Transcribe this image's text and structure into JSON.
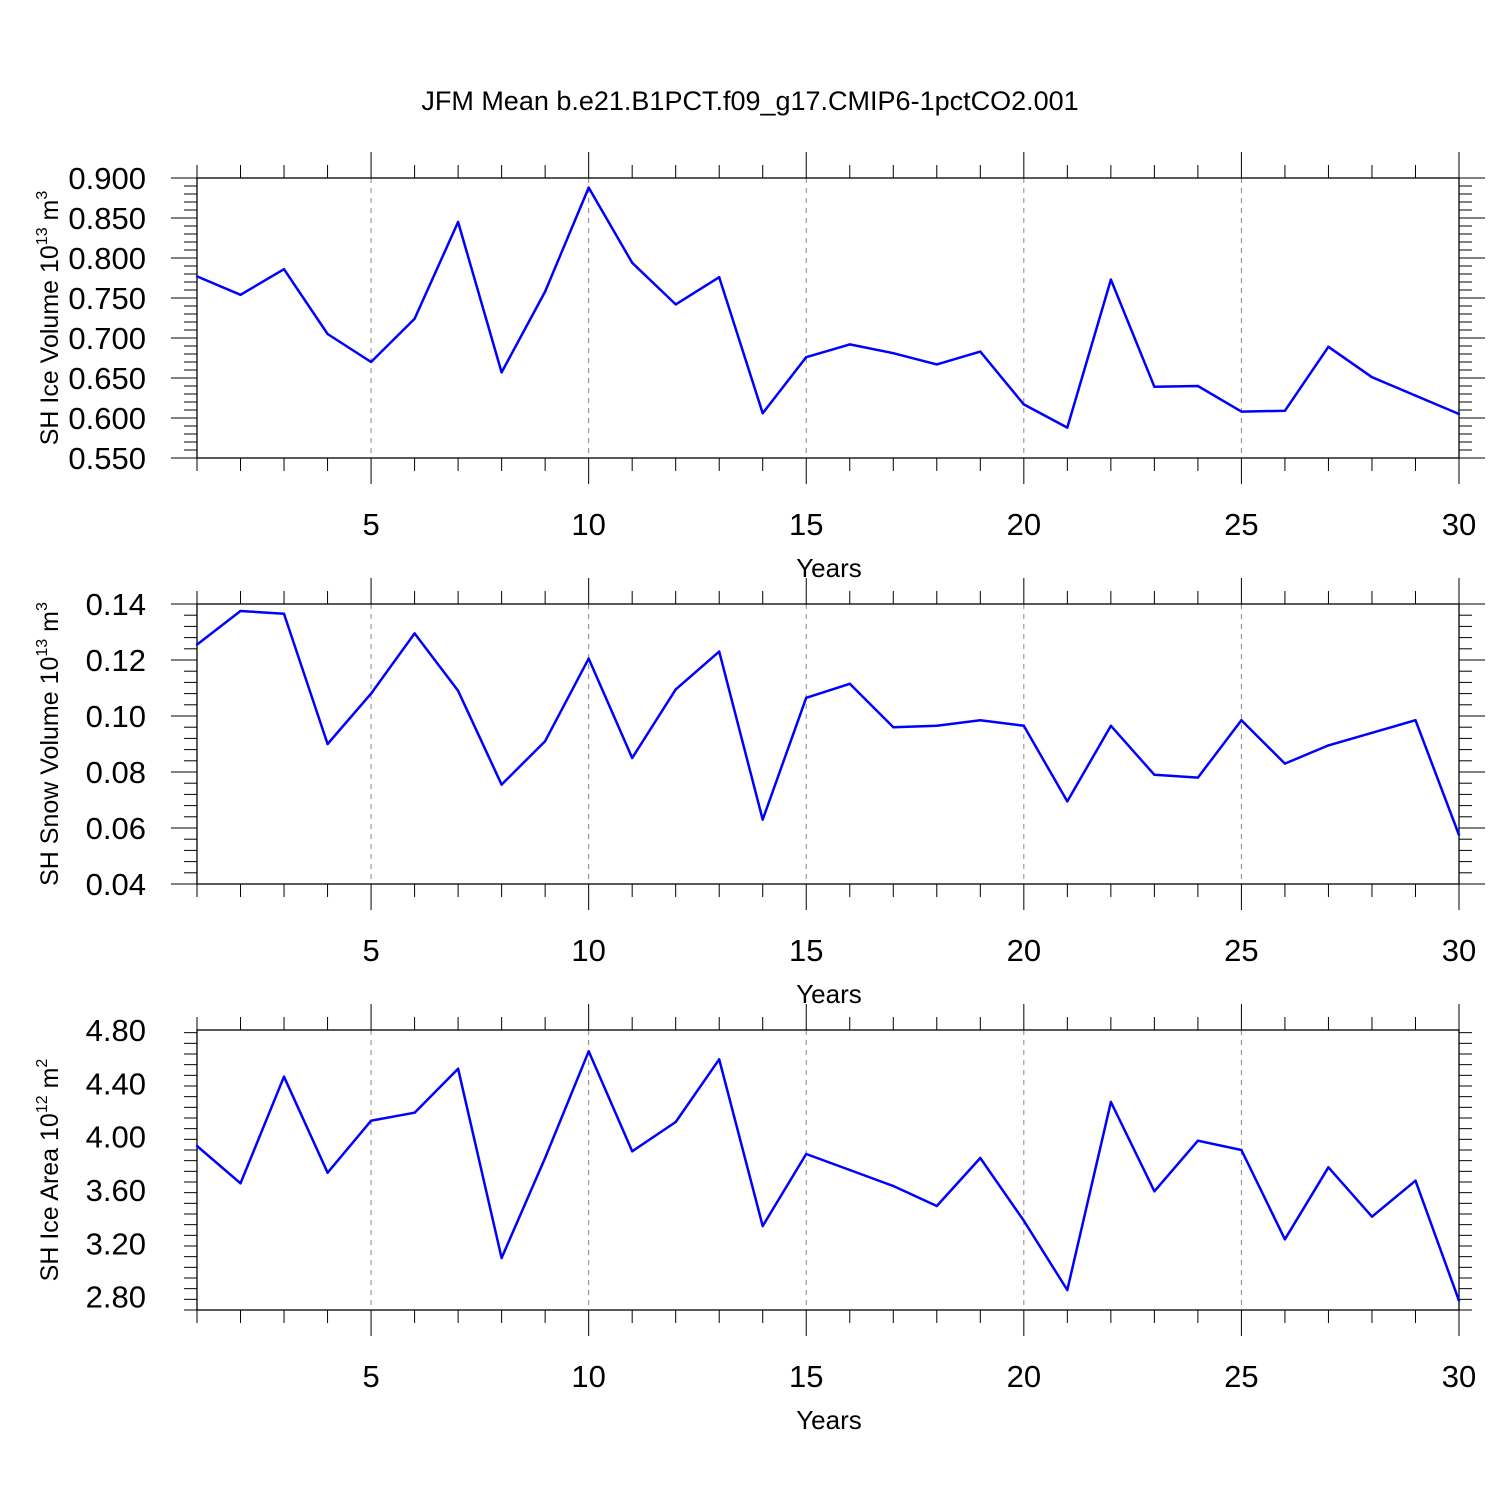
{
  "title": "JFM Mean b.e21.B1PCT.f09_g17.CMIP6-1pctCO2.001",
  "chart_data": [
    {
      "type": "line",
      "ylabel": {
        "prefix": "SH Ice Volume 10",
        "exponent": "13",
        "unit": " m",
        "unit_exponent": "3"
      },
      "xlabel": "Years",
      "xlim": [
        1,
        30
      ],
      "ylim": [
        0.55,
        0.9
      ],
      "yticks": [
        0.55,
        0.6,
        0.65,
        0.7,
        0.75,
        0.8,
        0.85,
        0.9
      ],
      "ytick_labels": [
        "0.550",
        "0.600",
        "0.650",
        "0.700",
        "0.750",
        "0.800",
        "0.850",
        "0.900"
      ],
      "xticks": [
        5,
        10,
        15,
        20,
        25,
        30
      ],
      "xtick_labels": [
        "5",
        "10",
        "15",
        "20",
        "25",
        "30"
      ],
      "color": "#0000ff",
      "x": [
        1,
        2,
        3,
        4,
        5,
        6,
        7,
        8,
        9,
        10,
        11,
        12,
        13,
        14,
        15,
        16,
        17,
        18,
        19,
        20,
        21,
        22,
        23,
        24,
        25,
        26,
        27,
        28,
        29,
        30
      ],
      "y": [
        0.777,
        0.754,
        0.786,
        0.705,
        0.67,
        0.724,
        0.845,
        0.657,
        0.758,
        0.888,
        0.794,
        0.742,
        0.776,
        0.606,
        0.676,
        0.692,
        0.681,
        0.667,
        0.683,
        0.617,
        0.588,
        0.773,
        0.639,
        0.64,
        0.608,
        0.609,
        0.689,
        0.651,
        0.628,
        0.605
      ]
    },
    {
      "type": "line",
      "ylabel": {
        "prefix": "SH Snow Volume 10",
        "exponent": "13",
        "unit": " m",
        "unit_exponent": "3"
      },
      "xlabel": "Years",
      "xlim": [
        1,
        30
      ],
      "ylim": [
        0.04,
        0.14
      ],
      "yticks": [
        0.04,
        0.06,
        0.08,
        0.1,
        0.12,
        0.14
      ],
      "ytick_labels": [
        "0.04",
        "0.06",
        "0.08",
        "0.10",
        "0.12",
        "0.14"
      ],
      "xticks": [
        5,
        10,
        15,
        20,
        25,
        30
      ],
      "xtick_labels": [
        "5",
        "10",
        "15",
        "20",
        "25",
        "30"
      ],
      "color": "#0000ff",
      "x": [
        1,
        2,
        3,
        4,
        5,
        6,
        7,
        8,
        9,
        10,
        11,
        12,
        13,
        14,
        15,
        16,
        17,
        18,
        19,
        20,
        21,
        22,
        23,
        24,
        25,
        26,
        27,
        28,
        29,
        30
      ],
      "y": [
        0.1255,
        0.1375,
        0.1365,
        0.09,
        0.108,
        0.1295,
        0.109,
        0.0755,
        0.091,
        0.1205,
        0.085,
        0.1095,
        0.123,
        0.063,
        0.1065,
        0.1115,
        0.096,
        0.0965,
        0.0985,
        0.0965,
        0.0695,
        0.0965,
        0.079,
        0.078,
        0.0985,
        0.083,
        0.0895,
        0.094,
        0.0985,
        0.0575
      ]
    },
    {
      "type": "line",
      "ylabel": {
        "prefix": "SH Ice Area 10",
        "exponent": "12",
        "unit": " m",
        "unit_exponent": "2"
      },
      "xlabel": "Years",
      "xlim": [
        1,
        30
      ],
      "ylim": [
        2.7,
        4.8
      ],
      "yticks": [
        2.8,
        3.2,
        3.6,
        4.0,
        4.4,
        4.8
      ],
      "ytick_labels": [
        "2.80",
        "3.20",
        "3.60",
        "4.00",
        "4.40",
        "4.80"
      ],
      "xticks": [
        5,
        10,
        15,
        20,
        25,
        30
      ],
      "xtick_labels": [
        "5",
        "10",
        "15",
        "20",
        "25",
        "30"
      ],
      "color": "#0000ff",
      "x": [
        1,
        2,
        3,
        4,
        5,
        6,
        7,
        8,
        9,
        10,
        11,
        12,
        13,
        14,
        15,
        16,
        17,
        18,
        19,
        20,
        21,
        22,
        23,
        24,
        25,
        26,
        27,
        28,
        29,
        30
      ],
      "y": [
        3.93,
        3.65,
        4.45,
        3.73,
        4.12,
        4.18,
        4.51,
        3.09,
        3.84,
        4.64,
        3.89,
        4.11,
        4.58,
        3.33,
        3.87,
        3.75,
        3.63,
        3.48,
        3.84,
        3.37,
        2.85,
        4.26,
        3.59,
        3.97,
        3.9,
        3.23,
        3.77,
        3.4,
        3.67,
        2.77
      ]
    }
  ]
}
